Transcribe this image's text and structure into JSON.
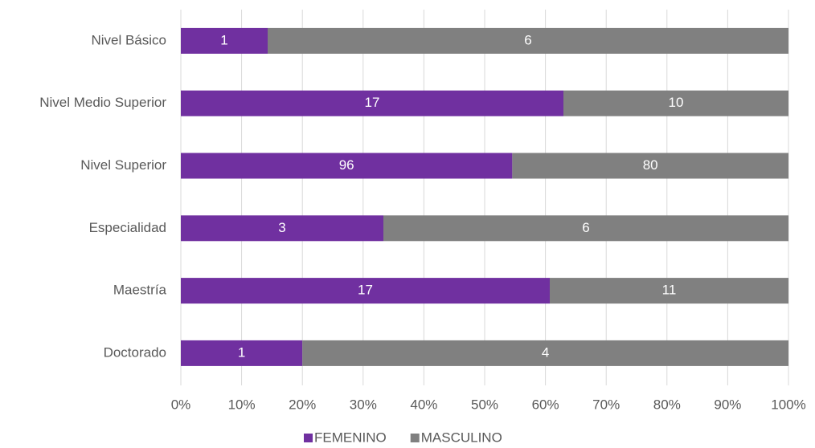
{
  "chart_data": {
    "type": "bar",
    "orientation": "horizontal",
    "stacking": "percent",
    "categories": [
      "Nivel Básico",
      "Nivel Medio Superior",
      "Nivel Superior",
      "Especialidad",
      "Maestría",
      "Doctorado"
    ],
    "series": [
      {
        "name": "FEMENINO",
        "color": "#7030a0",
        "values": [
          1,
          17,
          96,
          3,
          17,
          1
        ]
      },
      {
        "name": "MASCULINO",
        "color": "#808080",
        "values": [
          6,
          10,
          80,
          6,
          11,
          4
        ]
      }
    ],
    "xlim": [
      0,
      100
    ],
    "xticks": [
      {
        "value": 0,
        "label": "0%"
      },
      {
        "value": 10,
        "label": "10%"
      },
      {
        "value": 20,
        "label": "20%"
      },
      {
        "value": 30,
        "label": "30%"
      },
      {
        "value": 40,
        "label": "40%"
      },
      {
        "value": 50,
        "label": "50%"
      },
      {
        "value": 60,
        "label": "60%"
      },
      {
        "value": 70,
        "label": "70%"
      },
      {
        "value": 80,
        "label": "80%"
      },
      {
        "value": 90,
        "label": "90%"
      },
      {
        "value": 100,
        "label": "100%"
      }
    ],
    "grid": true,
    "legend": "bottom"
  }
}
